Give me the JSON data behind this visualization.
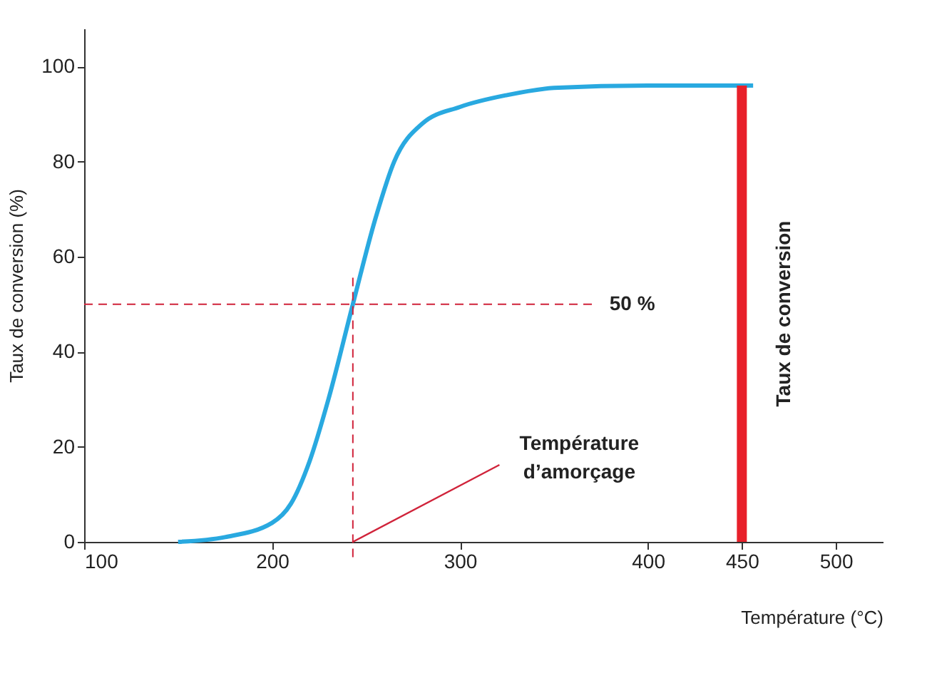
{
  "chart_data": {
    "type": "line",
    "xlabel": "Température (°C)",
    "ylabel": "Taux de conversion (%)",
    "xlim": [
      100,
      525
    ],
    "ylim": [
      0,
      108
    ],
    "xticks": [
      100,
      200,
      300,
      400,
      {
        "value": 450,
        "label": "450"
      },
      500
    ],
    "yticks": [
      0,
      20,
      40,
      60,
      80,
      100
    ],
    "grid": false,
    "x": [
      150,
      175,
      200,
      210,
      220,
      230,
      243,
      255,
      265,
      280,
      300,
      325,
      350,
      400,
      456
    ],
    "series": [
      {
        "color": "#29a9e0",
        "values": [
          0,
          1,
          4,
          8,
          17,
          30,
          50,
          68,
          80,
          88,
          91.5,
          94,
          95.5,
          96,
          96
        ]
      },
      {
        "type": "bar",
        "name": "Taux de conversion",
        "color": "#e8202a",
        "x": [
          450
        ],
        "values": [
          96
        ]
      }
    ],
    "ref_lines": [
      {
        "axis": "y",
        "value": 50,
        "label": "50 %",
        "color": "#d0233a",
        "line_style": "dashed"
      },
      {
        "axis": "x",
        "value": 243,
        "label": "Température d’amorçage",
        "color": "#d0233a",
        "line_style": "dashed"
      }
    ]
  }
}
